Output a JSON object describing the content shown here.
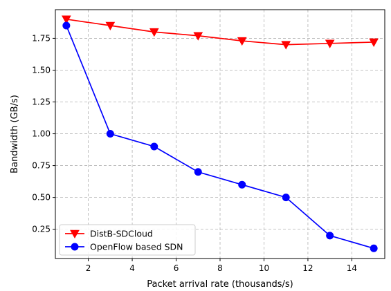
{
  "chart_data": {
    "type": "line",
    "title": "",
    "xlabel": "Packet arrival rate (thousands/s)",
    "ylabel": "Bandwidth (GB/s)",
    "xlim": [
      0.5,
      15.5
    ],
    "ylim": [
      0.02,
      1.975
    ],
    "xticks": [
      2,
      4,
      6,
      8,
      10,
      12,
      14
    ],
    "xtick_labels": [
      "2",
      "4",
      "6",
      "8",
      "10",
      "12",
      "14"
    ],
    "yticks": [
      0.25,
      0.5,
      0.75,
      1.0,
      1.25,
      1.5,
      1.75
    ],
    "ytick_labels": [
      "0.25",
      "0.50",
      "0.75",
      "1.00",
      "1.25",
      "1.50",
      "1.75"
    ],
    "grid": true,
    "legend_position": "lower-left",
    "x": [
      1,
      3,
      5,
      7,
      9,
      11,
      13,
      15
    ],
    "series": [
      {
        "name": "DistB-SDCloud",
        "color": "#ff0000",
        "marker": "triangle-down",
        "values": [
          1.9,
          1.85,
          1.8,
          1.77,
          1.73,
          1.7,
          1.71,
          1.72
        ]
      },
      {
        "name": "OpenFlow based SDN",
        "color": "#0000ff",
        "marker": "circle",
        "values": [
          1.85,
          1.0,
          0.9,
          0.7,
          0.6,
          0.5,
          0.2,
          0.1
        ]
      }
    ]
  }
}
